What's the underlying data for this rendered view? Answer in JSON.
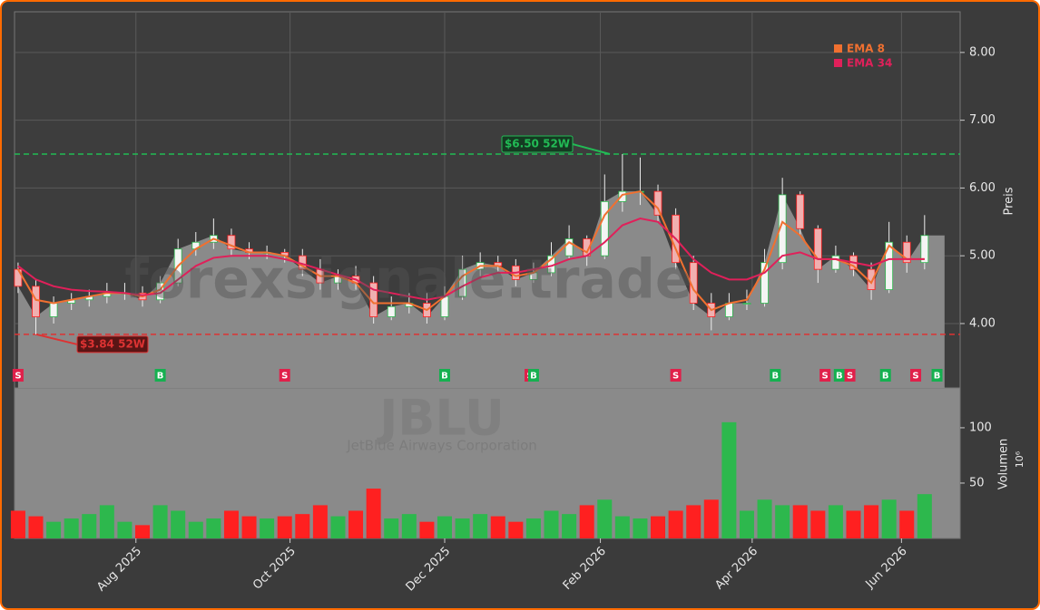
{
  "chart_data": {
    "type": "candlestick",
    "watermark": "forexsignale.trade",
    "symbol": "JBLU",
    "company": "JetBlue Airways Corporation",
    "y_label": "Preis",
    "y2_label": "Volumen",
    "y2_unit": "10⁶",
    "xlim": [
      -0.2,
      53
    ],
    "xticks": [
      {
        "value": 6.63,
        "label": "Aug 2025"
      },
      {
        "value": 15.3,
        "label": "Oct 2025"
      },
      {
        "value": 24,
        "label": "Dec 2025"
      },
      {
        "value": 32.76,
        "label": "Feb 2026"
      },
      {
        "value": 41.3,
        "label": "Apr 2026"
      },
      {
        "value": 49.7,
        "label": "Jun 2026"
      }
    ],
    "ylim": [
      3.05,
      8.6
    ],
    "yticks": [
      {
        "value": 4,
        "label": "4.00"
      },
      {
        "value": 5,
        "label": "5.00"
      },
      {
        "value": 6,
        "label": "6.00"
      },
      {
        "value": 7,
        "label": "7.00"
      },
      {
        "value": 8,
        "label": "8.00"
      }
    ],
    "y2lim": [
      0,
      136
    ],
    "y2ticks": [
      50,
      100
    ],
    "grid": true,
    "legend": "top-right",
    "up_color": "#2db84d",
    "down_color": "#ff2020",
    "area_color": "#8a8a8a",
    "open": [
      4.8,
      4.55,
      4.1,
      4.3,
      4.35,
      4.4,
      4.45,
      4.45,
      4.35,
      4.6,
      5.1,
      5.2,
      5.3,
      5.1,
      5.05,
      5.05,
      5.0,
      4.8,
      4.6,
      4.7,
      4.6,
      4.1,
      4.25,
      4.3,
      4.1,
      4.4,
      4.8,
      4.9,
      4.85,
      4.65,
      4.75,
      5.0,
      5.25,
      5.0,
      5.8,
      5.95,
      5.95,
      5.6,
      4.9,
      4.3,
      4.1,
      4.3,
      4.3,
      4.9,
      5.9,
      5.4,
      4.8,
      5.0,
      4.8,
      4.5,
      5.2,
      4.9
    ],
    "high": [
      4.9,
      4.65,
      4.4,
      4.45,
      4.5,
      4.6,
      4.6,
      4.55,
      4.7,
      5.25,
      5.35,
      5.55,
      5.4,
      5.2,
      5.15,
      5.1,
      5.1,
      4.95,
      4.8,
      4.85,
      4.7,
      4.4,
      4.45,
      4.45,
      4.55,
      5.0,
      5.05,
      5.0,
      4.95,
      4.9,
      5.2,
      5.45,
      5.3,
      6.2,
      6.5,
      6.45,
      6.05,
      5.7,
      5.0,
      4.45,
      4.45,
      4.5,
      5.1,
      6.15,
      5.95,
      5.45,
      5.15,
      5.05,
      4.9,
      5.5,
      5.3,
      5.6
    ],
    "low": [
      4.45,
      3.84,
      4.0,
      4.2,
      4.25,
      4.3,
      4.35,
      4.25,
      4.3,
      4.55,
      5.0,
      5.1,
      5.0,
      4.95,
      4.95,
      4.9,
      4.7,
      4.5,
      4.5,
      4.5,
      4.0,
      4.05,
      4.15,
      4.0,
      4.05,
      4.35,
      4.7,
      4.75,
      4.55,
      4.6,
      4.7,
      4.95,
      4.85,
      4.95,
      5.65,
      5.75,
      5.5,
      4.8,
      4.2,
      3.9,
      4.05,
      4.2,
      4.25,
      4.8,
      5.3,
      4.6,
      4.75,
      4.7,
      4.35,
      4.45,
      4.75,
      4.8
    ],
    "close": [
      4.55,
      4.1,
      4.3,
      4.35,
      4.4,
      4.45,
      4.45,
      4.35,
      4.6,
      5.1,
      5.2,
      5.3,
      5.1,
      5.05,
      5.05,
      5.0,
      4.8,
      4.6,
      4.7,
      4.6,
      4.1,
      4.25,
      4.3,
      4.1,
      4.4,
      4.8,
      4.9,
      4.85,
      4.65,
      4.75,
      5.0,
      5.25,
      5.0,
      5.8,
      5.95,
      5.95,
      5.6,
      4.9,
      4.3,
      4.1,
      4.3,
      4.3,
      4.9,
      5.9,
      5.4,
      4.8,
      5.0,
      4.8,
      4.5,
      5.2,
      4.9,
      5.3
    ],
    "volume": [
      25,
      20,
      15,
      18,
      22,
      30,
      15,
      12,
      30,
      25,
      15,
      18,
      25,
      20,
      18,
      20,
      22,
      30,
      20,
      25,
      45,
      18,
      22,
      15,
      20,
      18,
      22,
      20,
      15,
      18,
      25,
      22,
      30,
      35,
      20,
      18,
      20,
      25,
      30,
      35,
      105,
      25,
      35,
      30,
      30,
      25,
      30,
      25,
      30,
      35,
      25,
      40
    ],
    "series": [
      {
        "name": "EMA 8",
        "color": "#f07030",
        "values": [
          4.8,
          4.35,
          4.3,
          4.35,
          4.4,
          4.45,
          4.45,
          4.4,
          4.5,
          4.85,
          5.1,
          5.25,
          5.15,
          5.05,
          5.05,
          5.0,
          4.85,
          4.7,
          4.7,
          4.6,
          4.3,
          4.3,
          4.3,
          4.2,
          4.4,
          4.7,
          4.85,
          4.85,
          4.7,
          4.75,
          4.95,
          5.2,
          5.05,
          5.6,
          5.9,
          5.95,
          5.7,
          5.1,
          4.5,
          4.2,
          4.3,
          4.35,
          4.8,
          5.5,
          5.3,
          4.95,
          4.95,
          4.85,
          4.6,
          5.15,
          4.95,
          4.95
        ]
      },
      {
        "name": "EMA 34",
        "color": "#e0205a",
        "values": [
          4.85,
          4.65,
          4.55,
          4.5,
          4.48,
          4.47,
          4.45,
          4.42,
          4.45,
          4.65,
          4.85,
          4.97,
          5.0,
          5.0,
          5.0,
          4.95,
          4.88,
          4.8,
          4.72,
          4.65,
          4.5,
          4.45,
          4.4,
          4.35,
          4.4,
          4.55,
          4.68,
          4.75,
          4.75,
          4.8,
          4.85,
          4.95,
          5.0,
          5.2,
          5.45,
          5.55,
          5.5,
          5.25,
          4.95,
          4.75,
          4.65,
          4.65,
          4.75,
          5.0,
          5.05,
          4.95,
          4.95,
          4.9,
          4.85,
          4.95,
          4.95,
          4.95
        ]
      }
    ],
    "high_52w": {
      "value": 6.5,
      "label": "$6.50 52W",
      "color": "#22bb55"
    },
    "low_52w": {
      "value": 3.84,
      "label": "$3.84 52W",
      "color": "#dd3333"
    },
    "signals": [
      {
        "index": 0,
        "label": "S"
      },
      {
        "index": 8,
        "label": "B"
      },
      {
        "index": 15,
        "label": "S"
      },
      {
        "index": 24,
        "label": "B"
      },
      {
        "index": 28.8,
        "label": "S"
      },
      {
        "index": 29,
        "label": "B"
      },
      {
        "index": 37,
        "label": "S"
      },
      {
        "index": 42.6,
        "label": "B"
      },
      {
        "index": 45.4,
        "label": "S"
      },
      {
        "index": 46.2,
        "label": "B"
      },
      {
        "index": 46.8,
        "label": "S"
      },
      {
        "index": 48.8,
        "label": "B"
      },
      {
        "index": 50.5,
        "label": "S"
      },
      {
        "index": 51.7,
        "label": "B"
      }
    ]
  }
}
